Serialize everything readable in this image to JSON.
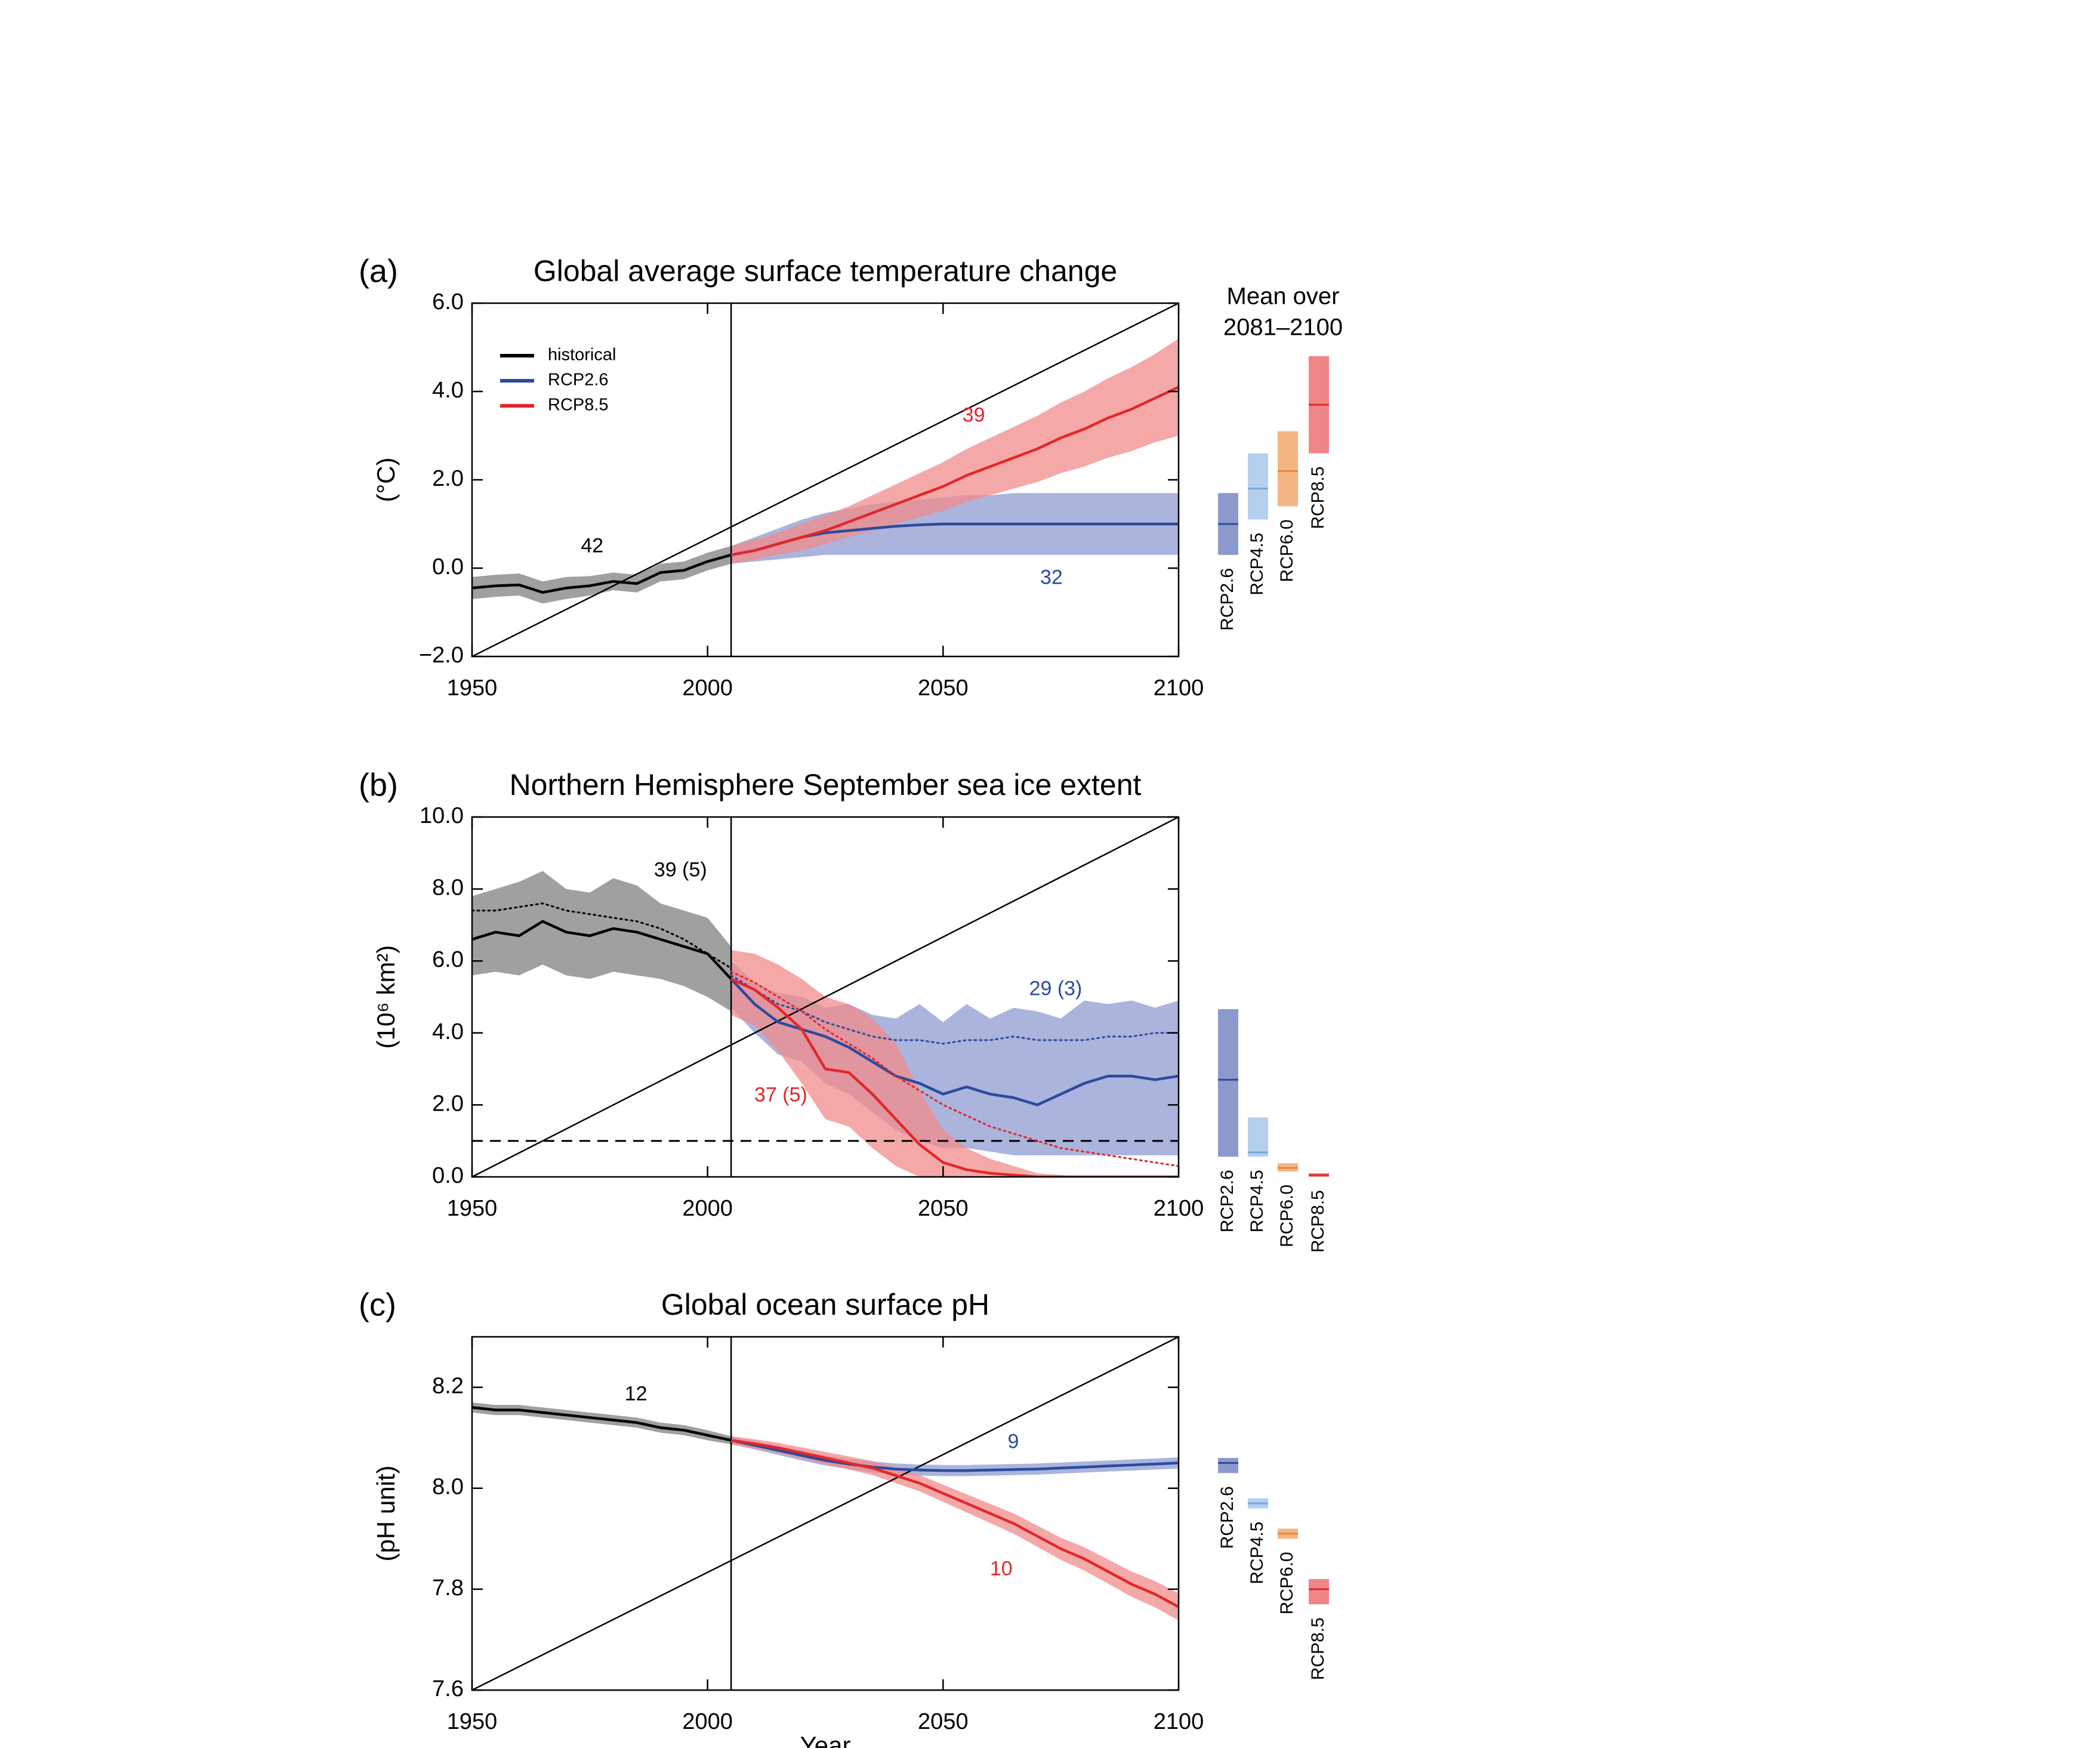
{
  "chart_data": [
    {
      "type": "line",
      "label": "(a)",
      "title": "Global average surface temperature change",
      "ylabel": "(°C)",
      "xlim": [
        1950,
        2100
      ],
      "xticks": [
        1950,
        2000,
        2050,
        2100
      ],
      "ylim": [
        -2,
        6
      ],
      "yticks": [
        {
          "value": -2,
          "label": "−2.0"
        },
        {
          "value": 0,
          "label": "0.0"
        },
        {
          "value": 2,
          "label": "2.0"
        },
        {
          "value": 4,
          "label": "4.0"
        },
        {
          "value": 6,
          "label": "6.0"
        }
      ],
      "vline": 2005,
      "legend": "upper left",
      "series": [
        {
          "name": "historical",
          "color": "#000000",
          "band": "#808080",
          "x": [
            1950,
            1955,
            1960,
            1965,
            1970,
            1975,
            1980,
            1985,
            1990,
            1995,
            2000,
            2005
          ],
          "values": [
            -0.45,
            -0.4,
            -0.38,
            -0.55,
            -0.45,
            -0.4,
            -0.3,
            -0.35,
            -0.1,
            -0.05,
            0.15,
            0.3
          ],
          "lower": [
            -0.7,
            -0.65,
            -0.62,
            -0.8,
            -0.7,
            -0.62,
            -0.5,
            -0.55,
            -0.3,
            -0.25,
            -0.05,
            0.1
          ],
          "upper": [
            -0.2,
            -0.15,
            -0.12,
            -0.3,
            -0.2,
            -0.18,
            -0.1,
            -0.15,
            0.1,
            0.15,
            0.35,
            0.5
          ]
        },
        {
          "name": "RCP2.6",
          "color": "#2b4a9e",
          "band": "#8d9bd0",
          "x": [
            2005,
            2010,
            2015,
            2020,
            2025,
            2030,
            2035,
            2040,
            2045,
            2050,
            2055,
            2060,
            2065,
            2070,
            2075,
            2080,
            2085,
            2090,
            2095,
            2100
          ],
          "values": [
            0.3,
            0.4,
            0.55,
            0.7,
            0.8,
            0.85,
            0.9,
            0.95,
            0.98,
            1.0,
            1.0,
            1.0,
            1.0,
            1.0,
            1.0,
            1.0,
            1.0,
            1.0,
            1.0,
            1.0
          ],
          "lower": [
            0.1,
            0.15,
            0.2,
            0.25,
            0.3,
            0.3,
            0.3,
            0.3,
            0.3,
            0.3,
            0.3,
            0.3,
            0.3,
            0.3,
            0.3,
            0.3,
            0.3,
            0.3,
            0.3,
            0.3
          ],
          "upper": [
            0.5,
            0.7,
            0.9,
            1.1,
            1.25,
            1.35,
            1.45,
            1.5,
            1.55,
            1.6,
            1.65,
            1.65,
            1.7,
            1.7,
            1.7,
            1.7,
            1.7,
            1.7,
            1.7,
            1.7
          ]
        },
        {
          "name": "RCP8.5",
          "color": "#e3262a",
          "band": "#f28b8b",
          "x": [
            2005,
            2010,
            2015,
            2020,
            2025,
            2030,
            2035,
            2040,
            2045,
            2050,
            2055,
            2060,
            2065,
            2070,
            2075,
            2080,
            2085,
            2090,
            2095,
            2100
          ],
          "values": [
            0.3,
            0.4,
            0.55,
            0.7,
            0.85,
            1.05,
            1.25,
            1.45,
            1.65,
            1.85,
            2.1,
            2.3,
            2.5,
            2.7,
            2.95,
            3.15,
            3.4,
            3.6,
            3.85,
            4.1
          ],
          "lower": [
            0.1,
            0.2,
            0.3,
            0.4,
            0.55,
            0.7,
            0.85,
            1.0,
            1.15,
            1.3,
            1.5,
            1.65,
            1.8,
            1.95,
            2.15,
            2.3,
            2.5,
            2.65,
            2.85,
            3.0
          ],
          "upper": [
            0.5,
            0.65,
            0.8,
            1.0,
            1.2,
            1.4,
            1.65,
            1.9,
            2.15,
            2.4,
            2.7,
            2.95,
            3.2,
            3.45,
            3.75,
            4.0,
            4.3,
            4.55,
            4.85,
            5.2
          ]
        }
      ],
      "annotations": [
        {
          "text": "42",
          "color": "#000000"
        },
        {
          "text": "39",
          "color": "#e3262a"
        },
        {
          "text": "32",
          "color": "#2b4a9e"
        }
      ],
      "side_title": [
        "Mean over",
        "2081–2100"
      ],
      "side_bars": [
        {
          "name": "RCP2.6",
          "color": "#2b4a9e",
          "fill": "#8c99cc",
          "low": 0.3,
          "high": 1.7,
          "mean": 1.0
        },
        {
          "name": "RCP4.5",
          "color": "#79a6dc",
          "fill": "#b4d0ee",
          "low": 1.1,
          "high": 2.6,
          "mean": 1.8
        },
        {
          "name": "RCP6.0",
          "color": "#e9853b",
          "fill": "#f5b583",
          "low": 1.4,
          "high": 3.1,
          "mean": 2.2
        },
        {
          "name": "RCP8.5",
          "color": "#e3262a",
          "fill": "#f08585",
          "low": 2.6,
          "high": 4.8,
          "mean": 3.7
        }
      ]
    },
    {
      "type": "line",
      "label": "(b)",
      "title": "Northern Hemisphere September sea ice extent",
      "ylabel": "(10⁶ km²)",
      "xlim": [
        1950,
        2100
      ],
      "xticks": [
        1950,
        2000,
        2050,
        2100
      ],
      "ylim": [
        0,
        10
      ],
      "yticks": [
        {
          "value": 0,
          "label": "0.0"
        },
        {
          "value": 2,
          "label": "2.0"
        },
        {
          "value": 4,
          "label": "4.0"
        },
        {
          "value": 6,
          "label": "6.0"
        },
        {
          "value": 8,
          "label": "8.0"
        },
        {
          "value": 10,
          "label": "10.0"
        }
      ],
      "vline": 2005,
      "hline": 1,
      "series": [
        {
          "name": "historical",
          "color": "#000000",
          "band": "#808080",
          "x": [
            1950,
            1955,
            1960,
            1965,
            1970,
            1975,
            1980,
            1985,
            1990,
            1995,
            2000,
            2005
          ],
          "values": [
            6.6,
            6.8,
            6.7,
            7.1,
            6.8,
            6.7,
            6.9,
            6.8,
            6.6,
            6.4,
            6.2,
            5.5
          ],
          "lower": [
            5.6,
            5.7,
            5.6,
            5.9,
            5.6,
            5.5,
            5.7,
            5.6,
            5.5,
            5.3,
            5.0,
            4.6
          ],
          "upper": [
            7.8,
            8.0,
            8.2,
            8.5,
            8.0,
            7.9,
            8.3,
            8.1,
            7.6,
            7.4,
            7.2,
            6.4
          ],
          "subset_values": [
            7.4,
            7.4,
            7.5,
            7.6,
            7.4,
            7.3,
            7.2,
            7.1,
            6.9,
            6.6,
            6.2,
            5.8
          ]
        },
        {
          "name": "RCP2.6",
          "color": "#2b4a9e",
          "band": "#8d9bd0",
          "x": [
            2005,
            2010,
            2015,
            2020,
            2025,
            2030,
            2035,
            2040,
            2045,
            2050,
            2055,
            2060,
            2065,
            2070,
            2075,
            2080,
            2085,
            2090,
            2095,
            2100
          ],
          "values": [
            5.5,
            4.8,
            4.3,
            4.1,
            3.9,
            3.6,
            3.2,
            2.8,
            2.6,
            2.3,
            2.5,
            2.3,
            2.2,
            2.0,
            2.3,
            2.6,
            2.8,
            2.8,
            2.7,
            2.8
          ],
          "lower": [
            4.7,
            4.0,
            3.4,
            3.2,
            2.6,
            2.3,
            1.8,
            1.3,
            1.0,
            0.8,
            0.8,
            0.7,
            0.6,
            0.6,
            0.6,
            0.6,
            0.6,
            0.6,
            0.6,
            0.6
          ],
          "upper": [
            6.0,
            5.4,
            5.1,
            5.0,
            4.7,
            4.8,
            4.5,
            4.4,
            4.8,
            4.3,
            4.8,
            4.4,
            4.7,
            4.6,
            4.4,
            4.9,
            4.8,
            4.9,
            4.7,
            4.9
          ],
          "subset_values": [
            5.6,
            5.2,
            4.8,
            4.6,
            4.3,
            4.1,
            3.9,
            3.8,
            3.8,
            3.7,
            3.8,
            3.8,
            3.9,
            3.8,
            3.8,
            3.8,
            3.9,
            3.9,
            4.0,
            4.0
          ]
        },
        {
          "name": "RCP8.5",
          "color": "#e3262a",
          "band": "#f28b8b",
          "x": [
            2005,
            2010,
            2015,
            2020,
            2025,
            2030,
            2035,
            2040,
            2045,
            2050,
            2055,
            2060,
            2065,
            2070,
            2075,
            2080,
            2085,
            2090,
            2095,
            2100
          ],
          "values": [
            5.5,
            5.2,
            4.7,
            4.1,
            3.0,
            2.9,
            2.3,
            1.6,
            0.9,
            0.4,
            0.2,
            0.1,
            0.05,
            0,
            0,
            0,
            0,
            0,
            0,
            0
          ],
          "lower": [
            4.5,
            4.2,
            3.5,
            2.6,
            1.6,
            1.4,
            0.8,
            0.3,
            0,
            0,
            0,
            0,
            0,
            0,
            0,
            0,
            0,
            0,
            0,
            0
          ],
          "upper": [
            6.3,
            6.2,
            5.9,
            5.5,
            5.0,
            4.8,
            4.4,
            3.7,
            2.4,
            1.3,
            0.8,
            0.5,
            0.3,
            0.1,
            0.05,
            0,
            0,
            0,
            0,
            0
          ],
          "subset_values": [
            5.7,
            5.4,
            5.0,
            4.6,
            4.1,
            3.7,
            3.3,
            2.8,
            2.4,
            2.0,
            1.7,
            1.4,
            1.2,
            1.0,
            0.8,
            0.7,
            0.6,
            0.5,
            0.4,
            0.3
          ]
        }
      ],
      "annotations": [
        {
          "text": "39 (5)",
          "color": "#000000"
        },
        {
          "text": "29 (3)",
          "color": "#2b4a9e"
        },
        {
          "text": "37 (5)",
          "color": "#e3262a"
        }
      ],
      "side_bars": [
        {
          "name": "RCP2.6",
          "color": "#2b4a9e",
          "fill": "#8c99cc",
          "low": 0.56,
          "high": 4.66,
          "mean": 2.7
        },
        {
          "name": "RCP4.5",
          "color": "#79a6dc",
          "fill": "#b4d0ee",
          "low": 0.56,
          "high": 1.65,
          "mean": 0.68
        },
        {
          "name": "RCP6.0",
          "color": "#e9853b",
          "fill": "#f5b583",
          "low": 0.15,
          "high": 0.38,
          "mean": 0.25
        },
        {
          "name": "RCP8.5",
          "color": "#e3262a",
          "fill": "#f08585",
          "low": 0.0,
          "high": 0.1,
          "mean": 0.05
        }
      ]
    },
    {
      "type": "line",
      "label": "(c)",
      "title": "Global ocean surface pH",
      "ylabel": "(pH unit)",
      "xlabel": "Year",
      "xlim": [
        1950,
        2100
      ],
      "xticks": [
        1950,
        2000,
        2050,
        2100
      ],
      "ylim": [
        7.6,
        8.3
      ],
      "yticks": [
        7.6,
        7.8,
        {
          "value": 8,
          "label": "8.0"
        },
        8.2
      ],
      "vline": 2005,
      "series": [
        {
          "name": "historical",
          "color": "#000000",
          "band": "#808080",
          "x": [
            1950,
            1955,
            1960,
            1965,
            1970,
            1975,
            1980,
            1985,
            1990,
            1995,
            2000,
            2005
          ],
          "values": [
            8.16,
            8.155,
            8.155,
            8.15,
            8.145,
            8.14,
            8.135,
            8.13,
            8.12,
            8.115,
            8.105,
            8.095
          ],
          "lower": [
            8.15,
            8.145,
            8.145,
            8.14,
            8.135,
            8.13,
            8.125,
            8.12,
            8.11,
            8.105,
            8.095,
            8.087
          ],
          "upper": [
            8.17,
            8.165,
            8.165,
            8.16,
            8.155,
            8.15,
            8.145,
            8.14,
            8.13,
            8.125,
            8.115,
            8.103
          ]
        },
        {
          "name": "RCP2.6",
          "color": "#2b4a9e",
          "band": "#8d9bd0",
          "x": [
            2005,
            2010,
            2015,
            2020,
            2025,
            2030,
            2035,
            2040,
            2045,
            2050,
            2055,
            2060,
            2065,
            2070,
            2075,
            2080,
            2085,
            2090,
            2095,
            2100
          ],
          "values": [
            8.095,
            8.085,
            8.075,
            8.065,
            8.055,
            8.048,
            8.042,
            8.038,
            8.036,
            8.035,
            8.035,
            8.036,
            8.037,
            8.038,
            8.04,
            8.042,
            8.044,
            8.046,
            8.048,
            8.05
          ],
          "lower": [
            8.087,
            8.077,
            8.066,
            8.055,
            8.045,
            8.038,
            8.031,
            8.027,
            8.025,
            8.024,
            8.024,
            8.025,
            8.026,
            8.027,
            8.029,
            8.031,
            8.033,
            8.035,
            8.037,
            8.039
          ],
          "upper": [
            8.103,
            8.093,
            8.084,
            8.075,
            8.065,
            8.058,
            8.053,
            8.049,
            8.047,
            8.046,
            8.046,
            8.047,
            8.048,
            8.049,
            8.051,
            8.053,
            8.055,
            8.057,
            8.059,
            8.061
          ]
        },
        {
          "name": "RCP8.5",
          "color": "#e3262a",
          "band": "#f28b8b",
          "x": [
            2005,
            2010,
            2015,
            2020,
            2025,
            2030,
            2035,
            2040,
            2045,
            2050,
            2055,
            2060,
            2065,
            2070,
            2075,
            2080,
            2085,
            2090,
            2095,
            2100
          ],
          "values": [
            8.095,
            8.088,
            8.08,
            8.07,
            8.06,
            8.05,
            8.04,
            8.025,
            8.01,
            7.99,
            7.97,
            7.95,
            7.93,
            7.905,
            7.88,
            7.86,
            7.835,
            7.81,
            7.79,
            7.765
          ],
          "lower": [
            8.087,
            8.079,
            8.07,
            8.059,
            8.048,
            8.037,
            8.026,
            8.01,
            7.994,
            7.973,
            7.952,
            7.931,
            7.91,
            7.884,
            7.858,
            7.837,
            7.811,
            7.785,
            7.764,
            7.738
          ],
          "upper": [
            8.103,
            8.097,
            8.09,
            8.081,
            8.072,
            8.063,
            8.054,
            8.04,
            8.026,
            8.007,
            7.988,
            7.969,
            7.95,
            7.926,
            7.902,
            7.883,
            7.859,
            7.835,
            7.816,
            7.792
          ]
        }
      ],
      "annotations": [
        {
          "text": "12",
          "color": "#000000"
        },
        {
          "text": "9",
          "color": "#2b4a9e"
        },
        {
          "text": "10",
          "color": "#e3262a"
        }
      ],
      "side_bars": [
        {
          "name": "RCP2.6",
          "color": "#2b4a9e",
          "fill": "#8c99cc",
          "low": 8.03,
          "high": 8.06,
          "mean": 8.05
        },
        {
          "name": "RCP4.5",
          "color": "#79a6dc",
          "fill": "#b4d0ee",
          "low": 7.96,
          "high": 7.98,
          "mean": 7.97
        },
        {
          "name": "RCP6.0",
          "color": "#e9853b",
          "fill": "#f5b583",
          "low": 7.9,
          "high": 7.92,
          "mean": 7.91
        },
        {
          "name": "RCP8.5",
          "color": "#e3262a",
          "fill": "#f08585",
          "low": 7.77,
          "high": 7.82,
          "mean": 7.8
        }
      ]
    }
  ]
}
